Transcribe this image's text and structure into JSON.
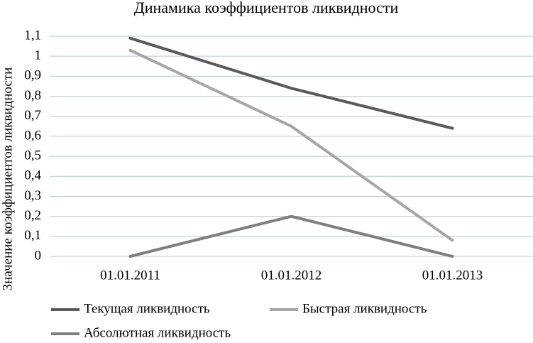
{
  "chart_data": {
    "type": "line",
    "title": "Динамика коэффициентов ликвидности",
    "y_label": "Значение коэффициентов ликвидности",
    "categories": [
      "01.01.2011",
      "01.01.2012",
      "01.01.2013"
    ],
    "series": [
      {
        "name": "Текущая ликвидность",
        "color": "#595959",
        "values": [
          1.09,
          0.84,
          0.64
        ]
      },
      {
        "name": "Быстрая ликвидность",
        "color": "#a6a6a6",
        "values": [
          1.03,
          0.65,
          0.08
        ]
      },
      {
        "name": "Абсолютная ликвидность",
        "color": "#7f7f7f",
        "values": [
          0,
          0.2,
          0
        ]
      }
    ],
    "ylim": [
      0,
      1.1
    ],
    "yticks": [
      0,
      {
        "value": 0.1,
        "label": "0,1"
      },
      {
        "value": 0.2,
        "label": "0,2"
      },
      {
        "value": 0.3,
        "label": "0,3"
      },
      {
        "value": 0.4,
        "label": "0,4"
      },
      {
        "value": 0.5,
        "label": "0,5"
      },
      {
        "value": 0.6,
        "label": "0,6"
      },
      {
        "value": 0.7,
        "label": "0,7"
      },
      {
        "value": 0.8,
        "label": "0,8"
      },
      {
        "value": 0.9,
        "label": "0,9"
      },
      1,
      {
        "value": 1.1,
        "label": "1,1"
      }
    ],
    "grid": true,
    "legend": "bottom"
  }
}
